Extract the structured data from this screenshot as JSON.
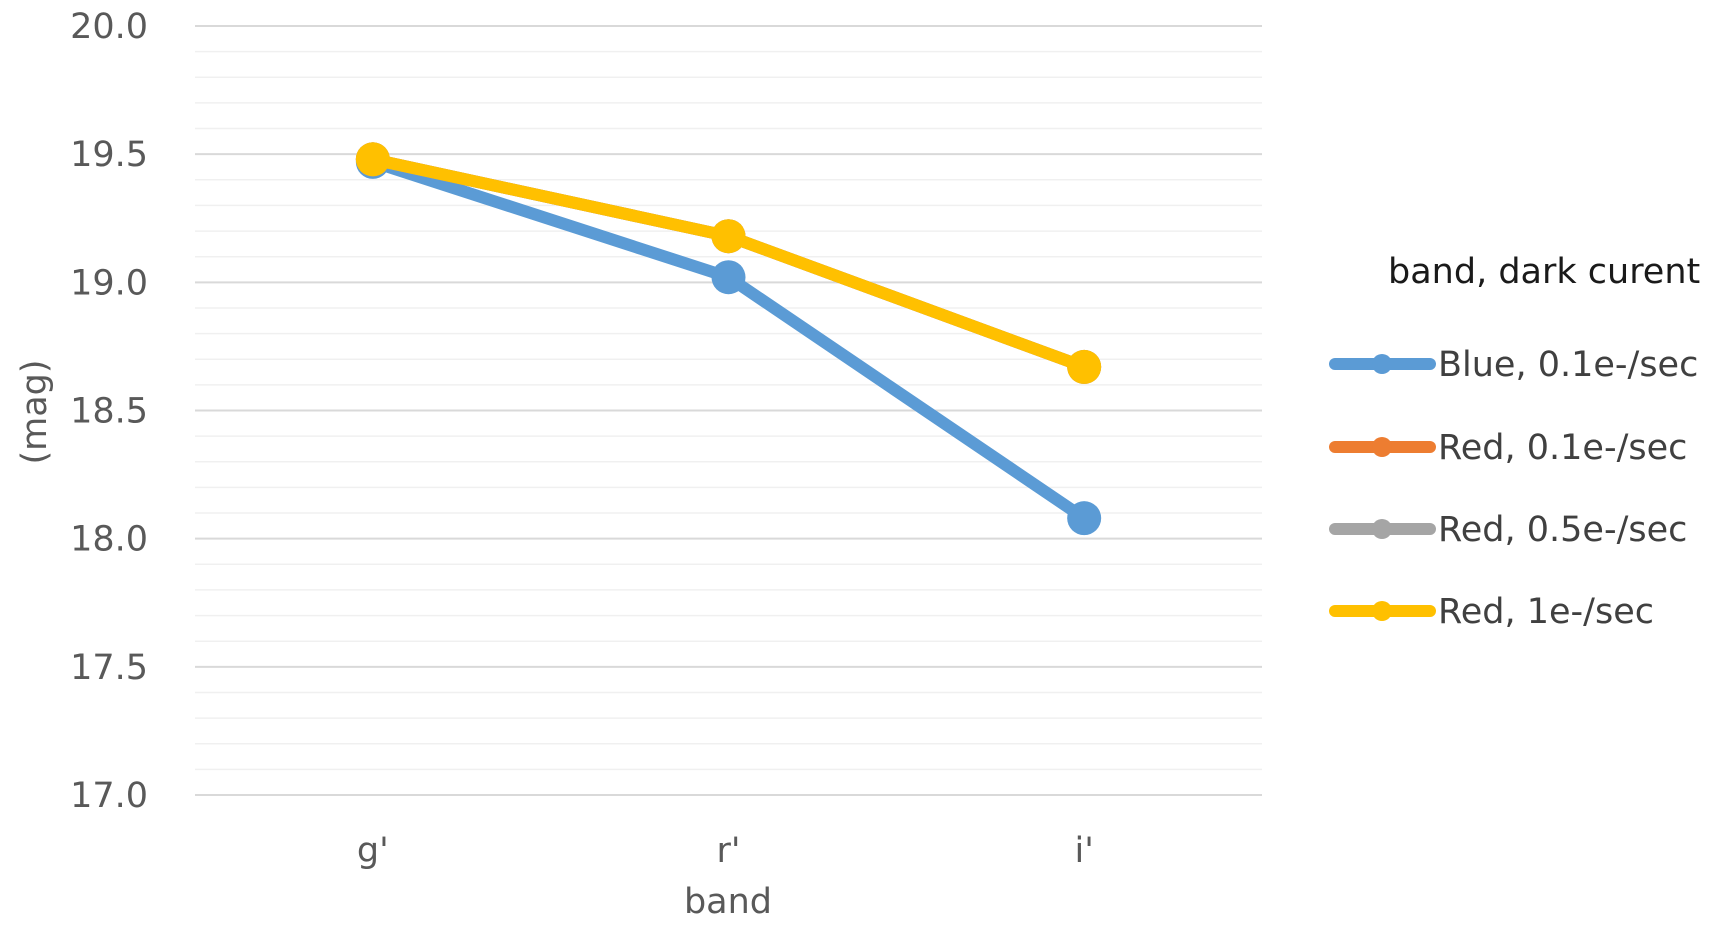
{
  "chart_data": {
    "type": "line",
    "categories": [
      "g'",
      "r'",
      "i'"
    ],
    "xlabel": "band",
    "ylabel": "(mag)",
    "ylim": [
      17.0,
      20.0
    ],
    "yticks": [
      "17.0",
      "17.5",
      "18.0",
      "18.5",
      "19.0",
      "19.5",
      "20.0"
    ],
    "ytick_step": 0.5,
    "minor_gridlines": 0.1,
    "grid": true,
    "legend": {
      "title": "band, dark curent",
      "placement": "right"
    },
    "series": [
      {
        "name": "Blue, 0.1e-/sec",
        "color": "#5B9BD5",
        "values": [
          19.47,
          19.02,
          18.08
        ]
      },
      {
        "name": "Red, 0.1e-/sec",
        "color": "#ED7D31",
        "values": [
          19.48,
          19.18,
          18.67
        ]
      },
      {
        "name": "Red, 0.5e-/sec",
        "color": "#A5A5A5",
        "values": [
          19.48,
          19.18,
          18.67
        ]
      },
      {
        "name": "Red, 1e-/sec",
        "color": "#FFC000",
        "values": [
          19.48,
          19.18,
          18.67
        ]
      }
    ]
  }
}
